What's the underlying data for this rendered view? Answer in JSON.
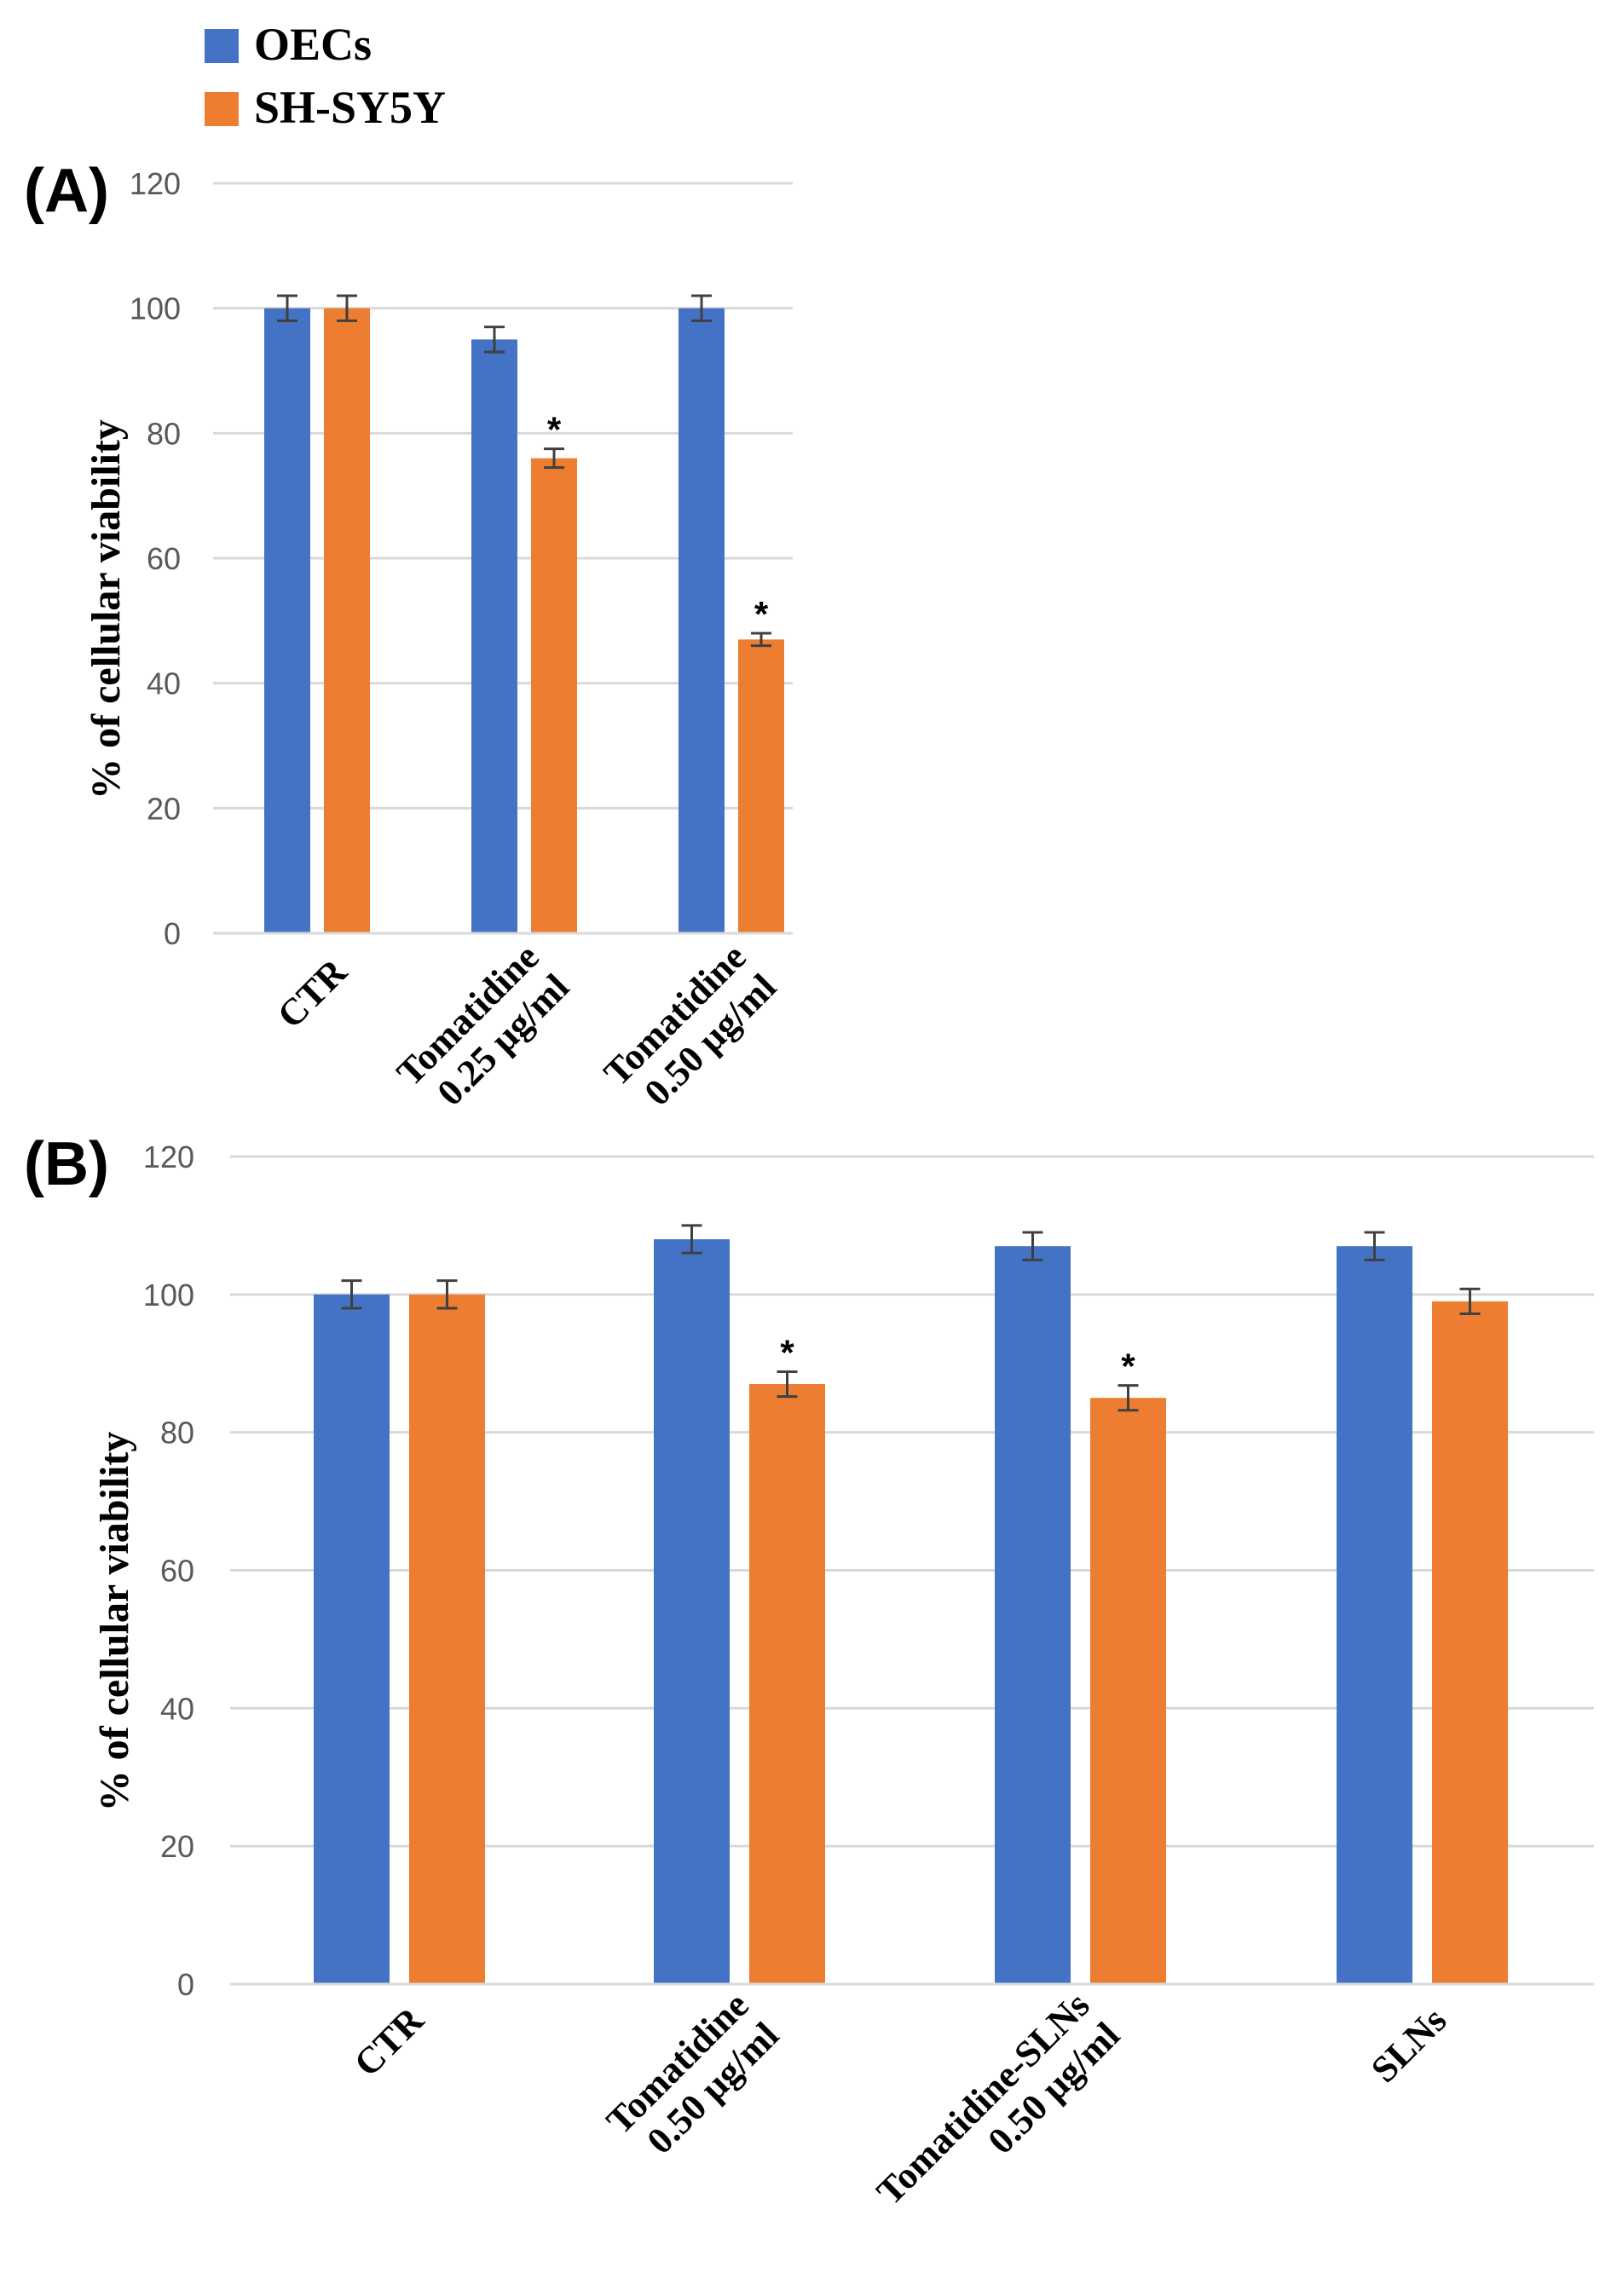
{
  "legend": [
    {
      "name": "OECs",
      "color": "#4472C4"
    },
    {
      "name": "SH-SY5Y",
      "color": "#ED7D31"
    }
  ],
  "chart_data": [
    {
      "panel": "(A)",
      "type": "bar",
      "ylabel": "% of  cellular viability",
      "ylim": [
        0,
        120
      ],
      "yticks": [
        0,
        20,
        40,
        60,
        80,
        100,
        120
      ],
      "grid": true,
      "categories": [
        [
          "CTR"
        ],
        [
          "Tomatidine",
          "0.25 µg/ml"
        ],
        [
          "Tomatidine",
          "0.50 µg/ml"
        ]
      ],
      "series": [
        {
          "name": "OECs",
          "values": [
            100,
            95,
            100
          ],
          "errors": [
            2,
            2,
            2
          ],
          "significant": [
            false,
            false,
            false
          ]
        },
        {
          "name": "SH-SY5Y",
          "values": [
            100,
            76,
            47
          ],
          "errors": [
            2,
            1.5,
            1
          ],
          "significant": [
            false,
            true,
            true
          ]
        }
      ],
      "significance_marker": "*"
    },
    {
      "panel": "(B)",
      "type": "bar",
      "ylabel": "% of  cellular viability",
      "ylim": [
        0,
        120
      ],
      "yticks": [
        0,
        20,
        40,
        60,
        80,
        100,
        120
      ],
      "grid": true,
      "categories": [
        [
          "CTR"
        ],
        [
          "Tomatidine",
          "0.50 µg/ml"
        ],
        [
          "Tomatidine-SLNs",
          "0.50 µg/ml"
        ],
        [
          "SLNs"
        ]
      ],
      "series": [
        {
          "name": "OECs",
          "values": [
            100,
            108,
            107,
            107
          ],
          "errors": [
            2,
            2,
            2,
            2
          ],
          "significant": [
            false,
            false,
            false,
            false
          ]
        },
        {
          "name": "SH-SY5Y",
          "values": [
            100,
            87,
            85,
            99
          ],
          "errors": [
            2,
            1.8,
            1.8,
            1.8
          ],
          "significant": [
            false,
            true,
            true,
            false
          ]
        }
      ],
      "significance_marker": "*"
    }
  ]
}
